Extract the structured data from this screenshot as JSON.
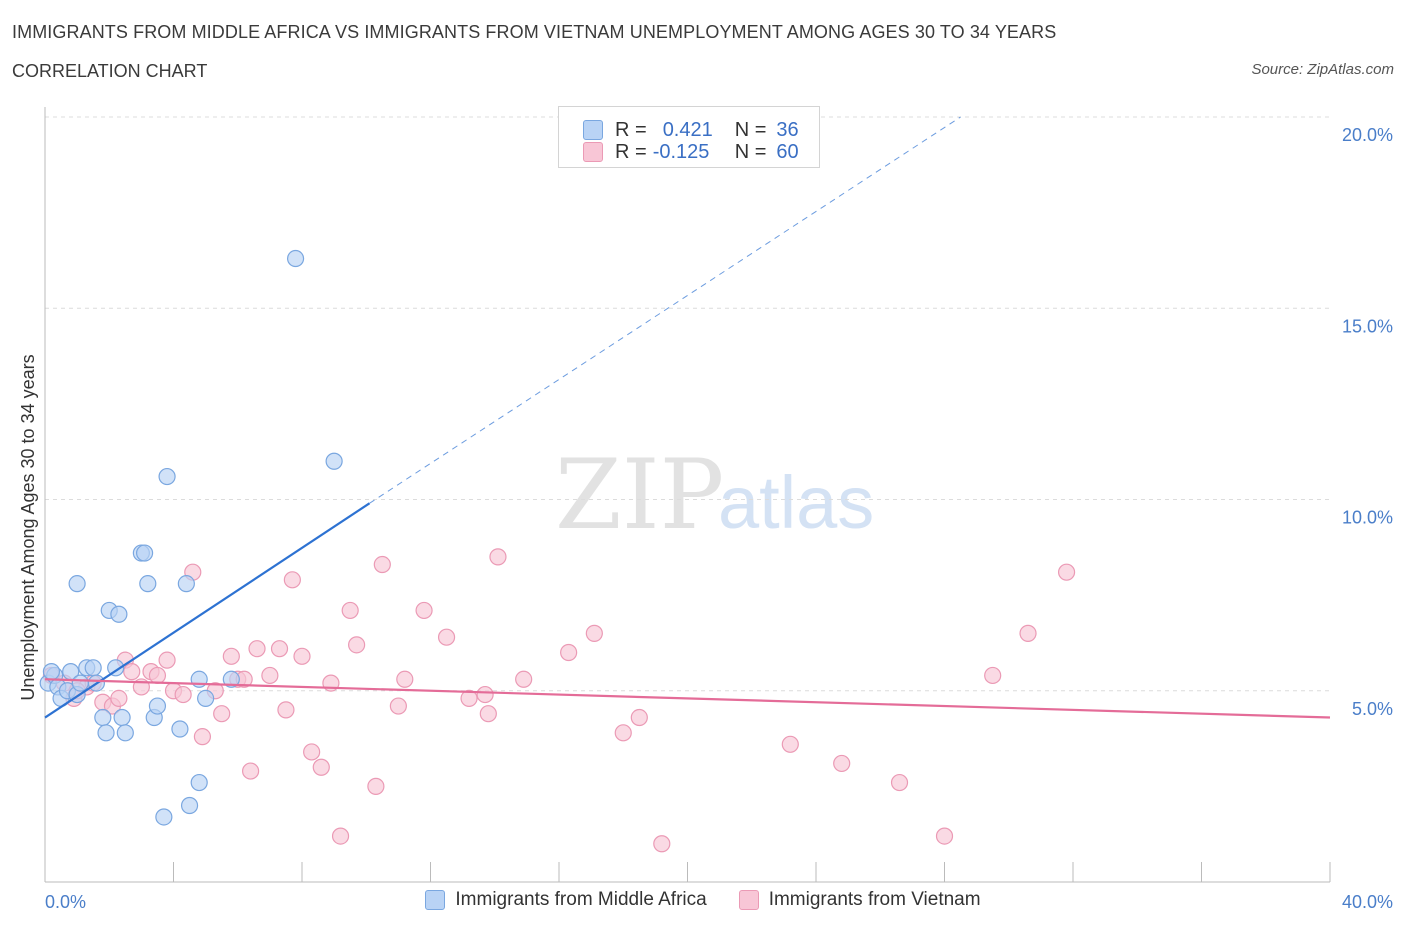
{
  "title": "IMMIGRANTS FROM MIDDLE AFRICA VS IMMIGRANTS FROM VIETNAM UNEMPLOYMENT AMONG AGES 30 TO 34 YEARS",
  "subtitle": "CORRELATION CHART",
  "source": "Source: ZipAtlas.com",
  "watermark": {
    "zip": "ZIP",
    "atlas": "atlas"
  },
  "colors": {
    "blue_fill": "#b9d3f5",
    "blue_stroke": "#7aa7e0",
    "blue_line": "#2d72d2",
    "pink_fill": "#f8c6d6",
    "pink_stroke": "#eb9ab5",
    "pink_line": "#e46c98",
    "axis_text": "#4a7ec9",
    "grid": "#dcdcdc"
  },
  "correlation_box": {
    "rows": [
      {
        "r_label": "R =",
        "r_value": "0.421",
        "n_label": "N =",
        "n_value": "36",
        "series": "blue"
      },
      {
        "r_label": "R =",
        "r_value": "-0.125",
        "n_label": "N =",
        "n_value": "60",
        "series": "pink"
      }
    ]
  },
  "chart_data": {
    "type": "scatter",
    "title": "IMMIGRANTS FROM MIDDLE AFRICA VS IMMIGRANTS FROM VIETNAM UNEMPLOYMENT AMONG AGES 30 TO 34 YEARS",
    "xlabel": "",
    "ylabel": "Unemployment Among Ages 30 to 34 years",
    "xlim": [
      0,
      40
    ],
    "ylim": [
      0,
      20
    ],
    "x_tick_labels": [
      {
        "value": 0,
        "label": "0.0%"
      },
      {
        "value": 40,
        "label": "40.0%"
      }
    ],
    "y_tick_labels": [
      {
        "value": 5,
        "label": "5.0%"
      },
      {
        "value": 10,
        "label": "10.0%"
      },
      {
        "value": 15,
        "label": "15.0%"
      },
      {
        "value": 20,
        "label": "20.0%"
      }
    ],
    "series": [
      {
        "name": "Immigrants from Middle Africa",
        "color": "blue",
        "points": [
          [
            0.1,
            5.2
          ],
          [
            0.3,
            5.4
          ],
          [
            0.4,
            5.1
          ],
          [
            0.5,
            4.8
          ],
          [
            0.7,
            5.0
          ],
          [
            0.8,
            5.5
          ],
          [
            1.0,
            4.9
          ],
          [
            1.1,
            5.2
          ],
          [
            1.0,
            7.8
          ],
          [
            1.3,
            5.6
          ],
          [
            1.5,
            5.6
          ],
          [
            1.6,
            5.2
          ],
          [
            1.8,
            4.3
          ],
          [
            1.9,
            3.9
          ],
          [
            2.0,
            7.1
          ],
          [
            2.3,
            7.0
          ],
          [
            2.2,
            5.6
          ],
          [
            2.4,
            4.3
          ],
          [
            2.5,
            3.9
          ],
          [
            3.0,
            8.6
          ],
          [
            3.1,
            8.6
          ],
          [
            3.2,
            7.8
          ],
          [
            3.4,
            4.3
          ],
          [
            3.5,
            4.6
          ],
          [
            3.8,
            10.6
          ],
          [
            3.7,
            1.7
          ],
          [
            4.2,
            4.0
          ],
          [
            4.4,
            7.8
          ],
          [
            4.5,
            2.0
          ],
          [
            4.8,
            2.6
          ],
          [
            4.8,
            5.3
          ],
          [
            5.0,
            4.8
          ],
          [
            5.8,
            5.3
          ],
          [
            7.8,
            16.3
          ],
          [
            9.0,
            11.0
          ],
          [
            0.2,
            5.5
          ]
        ]
      },
      {
        "name": "Immigrants from Vietnam",
        "color": "pink",
        "points": [
          [
            0.2,
            5.4
          ],
          [
            0.6,
            5.2
          ],
          [
            0.9,
            4.8
          ],
          [
            1.3,
            5.1
          ],
          [
            1.5,
            5.2
          ],
          [
            1.8,
            4.7
          ],
          [
            2.1,
            4.6
          ],
          [
            2.3,
            4.8
          ],
          [
            2.5,
            5.8
          ],
          [
            2.7,
            5.5
          ],
          [
            3.0,
            5.1
          ],
          [
            3.3,
            5.5
          ],
          [
            3.5,
            5.4
          ],
          [
            3.8,
            5.8
          ],
          [
            4.0,
            5.0
          ],
          [
            4.3,
            4.9
          ],
          [
            4.6,
            8.1
          ],
          [
            4.9,
            3.8
          ],
          [
            5.3,
            5.0
          ],
          [
            5.5,
            4.4
          ],
          [
            5.8,
            5.9
          ],
          [
            6.0,
            5.3
          ],
          [
            6.2,
            5.3
          ],
          [
            6.4,
            2.9
          ],
          [
            6.6,
            6.1
          ],
          [
            7.0,
            5.4
          ],
          [
            7.3,
            6.1
          ],
          [
            7.5,
            4.5
          ],
          [
            7.7,
            7.9
          ],
          [
            8.0,
            5.9
          ],
          [
            8.3,
            3.4
          ],
          [
            8.6,
            3.0
          ],
          [
            8.9,
            5.2
          ],
          [
            9.2,
            1.2
          ],
          [
            9.5,
            7.1
          ],
          [
            9.7,
            6.2
          ],
          [
            10.3,
            2.5
          ],
          [
            10.5,
            8.3
          ],
          [
            11.0,
            4.6
          ],
          [
            11.2,
            5.3
          ],
          [
            11.8,
            7.1
          ],
          [
            12.5,
            6.4
          ],
          [
            13.2,
            4.8
          ],
          [
            13.7,
            4.9
          ],
          [
            13.8,
            4.4
          ],
          [
            14.1,
            8.5
          ],
          [
            14.9,
            5.3
          ],
          [
            16.3,
            6.0
          ],
          [
            17.1,
            6.5
          ],
          [
            18.0,
            3.9
          ],
          [
            18.5,
            4.3
          ],
          [
            19.2,
            1.0
          ],
          [
            23.2,
            3.6
          ],
          [
            24.8,
            3.1
          ],
          [
            26.6,
            2.6
          ],
          [
            28.0,
            1.2
          ],
          [
            29.5,
            5.4
          ],
          [
            30.6,
            6.5
          ],
          [
            31.8,
            8.1
          ],
          [
            1.0,
            5.0
          ]
        ]
      }
    ],
    "trend_lines": [
      {
        "series": "Immigrants from Middle Africa",
        "x_start": 0,
        "y_start": 4.3,
        "x_end": 10.1,
        "y_end": 9.9,
        "dashed_to_x": 28.5,
        "dashed_to_y": 20.0
      },
      {
        "series": "Immigrants from Vietnam",
        "x_start": 0,
        "y_start": 5.3,
        "x_end": 40,
        "y_end": 4.3
      }
    ],
    "legend": [
      "Immigrants from Middle Africa",
      "Immigrants from Vietnam"
    ],
    "grid": true
  }
}
